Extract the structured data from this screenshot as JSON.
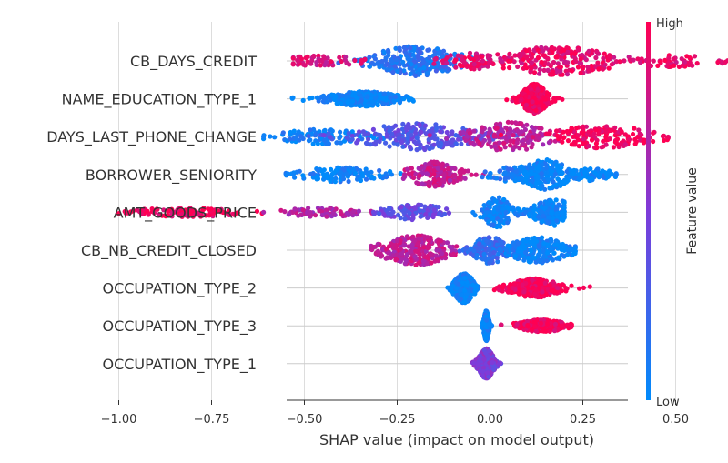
{
  "chart_data": {
    "type": "scatter",
    "subtype": "shap-beeswarm",
    "xlabel": "SHAP value (impact on model output)",
    "xlim": [
      -1.05,
      0.72
    ],
    "xticks": [
      -1.0,
      -0.75,
      -0.5,
      -0.25,
      0.0,
      0.25,
      0.5
    ],
    "xtick_labels": [
      "−1.00",
      "−0.75",
      "−0.50",
      "−0.25",
      "0.00",
      "0.25",
      "0.50"
    ],
    "grid": "horizontal-per-feature",
    "colorbar": {
      "label": "Feature value",
      "high_label": "High",
      "low_label": "Low",
      "high_color": "#ff0052",
      "mid_color": "#7e3bd9",
      "low_color": "#008bfb"
    },
    "features": [
      {
        "name": "CB_DAYS_CREDIT",
        "clusters": [
          {
            "center": -0.2,
            "spread": 0.09,
            "amp": 1.0,
            "color": 0.15,
            "weight": 0.38
          },
          {
            "center": -0.45,
            "spread": 0.08,
            "amp": 0.3,
            "color": 0.85,
            "weight": 0.08
          },
          {
            "center": -0.05,
            "spread": 0.06,
            "amp": 0.5,
            "color": 0.9,
            "weight": 0.1
          },
          {
            "center": 0.18,
            "spread": 0.12,
            "amp": 0.95,
            "color": 0.9,
            "weight": 0.36
          },
          {
            "center": 0.5,
            "spread": 0.09,
            "amp": 0.35,
            "color": 0.92,
            "weight": 0.08
          }
        ],
        "min": -0.53,
        "max": 0.66
      },
      {
        "name": "NAME_EDUCATION_TYPE_1",
        "clusters": [
          {
            "center": -0.34,
            "spread": 0.07,
            "amp": 0.45,
            "color": 0.02,
            "weight": 0.5
          },
          {
            "center": 0.12,
            "spread": 0.025,
            "amp": 1.0,
            "color": 0.98,
            "weight": 0.5
          }
        ],
        "min": -0.55,
        "max": 0.2
      },
      {
        "name": "DAYS_LAST_PHONE_CHANGE",
        "clusters": [
          {
            "center": -0.45,
            "spread": 0.09,
            "amp": 0.45,
            "color": 0.05,
            "weight": 0.15
          },
          {
            "center": -0.2,
            "spread": 0.12,
            "amp": 0.9,
            "color": 0.35,
            "weight": 0.35
          },
          {
            "center": 0.05,
            "spread": 0.08,
            "amp": 1.0,
            "color": 0.75,
            "weight": 0.25
          },
          {
            "center": 0.3,
            "spread": 0.1,
            "amp": 0.75,
            "color": 0.95,
            "weight": 0.25
          }
        ],
        "min": -0.61,
        "max": 0.48
      },
      {
        "name": "BORROWER_SENIORITY",
        "clusters": [
          {
            "center": -0.4,
            "spread": 0.08,
            "amp": 0.45,
            "color": 0.05,
            "weight": 0.18
          },
          {
            "center": -0.15,
            "spread": 0.05,
            "amp": 0.85,
            "color": 0.75,
            "weight": 0.25
          },
          {
            "center": 0.07,
            "spread": 0.05,
            "amp": 0.5,
            "color": 0.1,
            "weight": 0.15
          },
          {
            "center": 0.15,
            "spread": 0.05,
            "amp": 1.0,
            "color": 0.02,
            "weight": 0.3
          },
          {
            "center": 0.27,
            "spread": 0.04,
            "amp": 0.35,
            "color": 0.02,
            "weight": 0.12
          }
        ],
        "min": -0.55,
        "max": 0.34
      },
      {
        "name": "AMT_GOODS_PRICE",
        "clusters": [
          {
            "center": -0.82,
            "spread": 0.1,
            "amp": 0.25,
            "color": 0.96,
            "weight": 0.15
          },
          {
            "center": -0.45,
            "spread": 0.07,
            "amp": 0.25,
            "color": 0.7,
            "weight": 0.12
          },
          {
            "center": -0.2,
            "spread": 0.07,
            "amp": 0.45,
            "color": 0.4,
            "weight": 0.18
          },
          {
            "center": 0.02,
            "spread": 0.03,
            "amp": 1.0,
            "color": 0.05,
            "weight": 0.25
          },
          {
            "center": 0.15,
            "spread": 0.03,
            "amp": 0.7,
            "color": 0.05,
            "weight": 0.15
          },
          {
            "center": 0.17,
            "spread": 0.04,
            "amp": 0.9,
            "color": 0.02,
            "weight": 0.15
          }
        ],
        "min": -1.0,
        "max": 0.2
      },
      {
        "name": "CB_NB_CREDIT_CLOSED",
        "clusters": [
          {
            "center": -0.2,
            "spread": 0.07,
            "amp": 1.0,
            "color": 0.75,
            "weight": 0.4
          },
          {
            "center": 0.0,
            "spread": 0.04,
            "amp": 0.9,
            "color": 0.2,
            "weight": 0.25
          },
          {
            "center": 0.13,
            "spread": 0.06,
            "amp": 0.85,
            "color": 0.03,
            "weight": 0.35
          }
        ],
        "min": -0.32,
        "max": 0.23
      },
      {
        "name": "OCCUPATION_TYPE_2",
        "clusters": [
          {
            "center": -0.07,
            "spread": 0.02,
            "amp": 1.0,
            "color": 0.02,
            "weight": 0.5
          },
          {
            "center": 0.12,
            "spread": 0.05,
            "amp": 0.6,
            "color": 0.97,
            "weight": 0.5
          }
        ],
        "min": -0.12,
        "max": 0.27
      },
      {
        "name": "OCCUPATION_TYPE_3",
        "clusters": [
          {
            "center": -0.01,
            "spread": 0.005,
            "amp": 1.0,
            "color": 0.03,
            "weight": 0.6
          },
          {
            "center": 0.14,
            "spread": 0.045,
            "amp": 0.35,
            "color": 0.96,
            "weight": 0.4
          }
        ],
        "min": -0.02,
        "max": 0.22
      },
      {
        "name": "OCCUPATION_TYPE_1",
        "clusters": [
          {
            "center": -0.01,
            "spread": 0.015,
            "amp": 1.0,
            "color": 0.5,
            "weight": 1.0
          }
        ],
        "min": -0.06,
        "max": 0.03
      }
    ]
  }
}
